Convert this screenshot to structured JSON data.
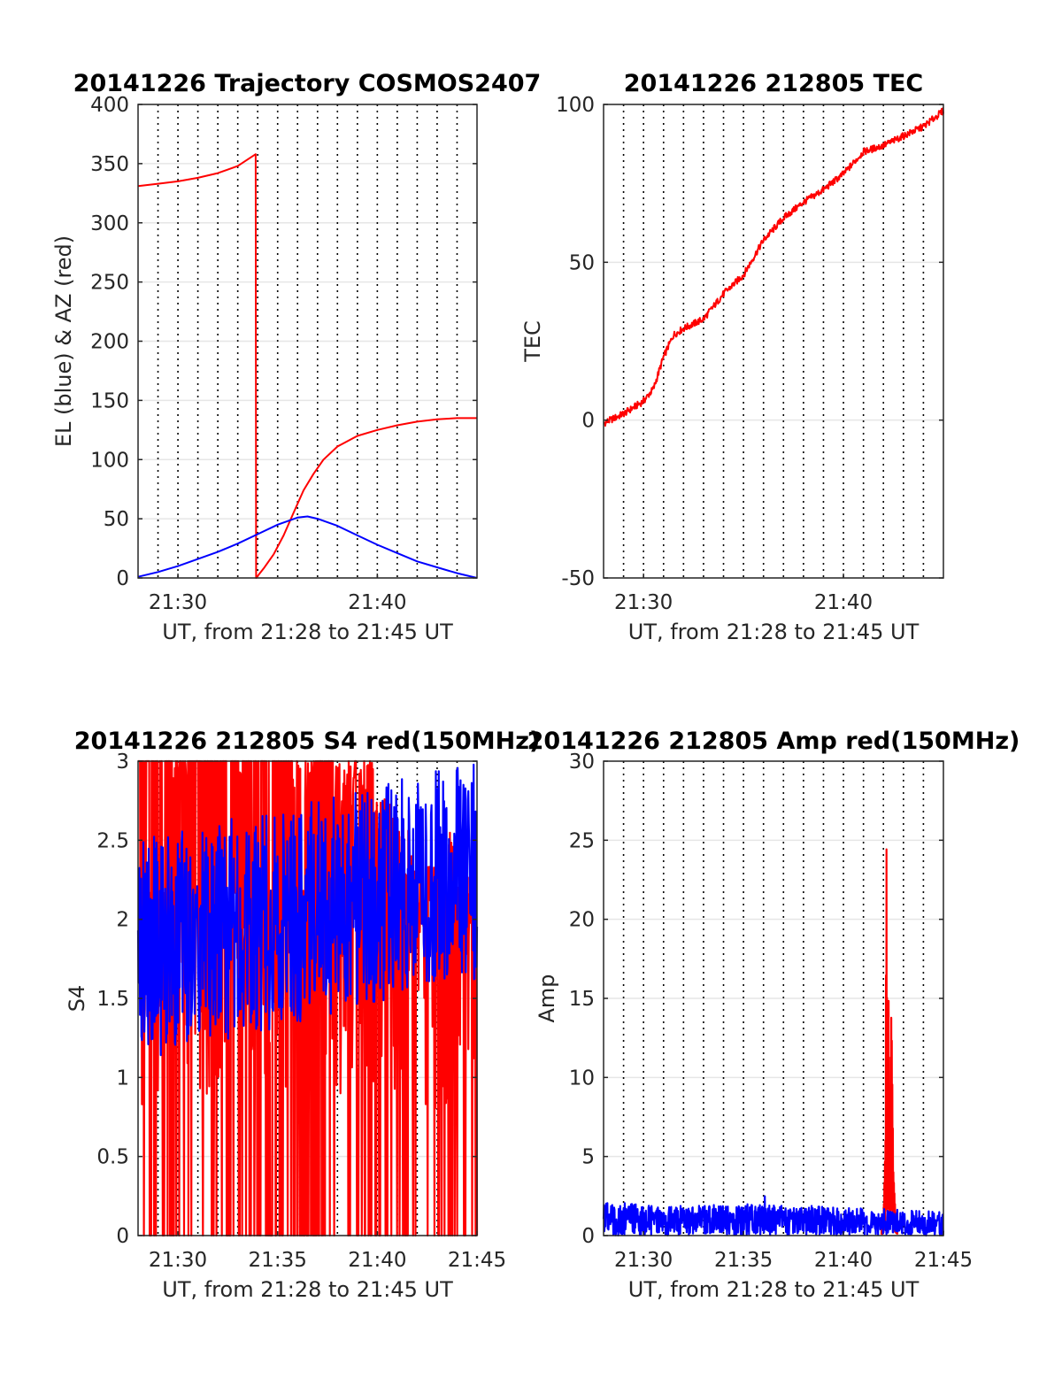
{
  "chart_data": [
    {
      "type": "line",
      "title": "20141226 Trajectory COSMOS2407",
      "xlabel": "UT, from 21:28 to 21:45 UT",
      "ylabel": "EL (blue) & AZ (red)",
      "xlim": [
        0,
        17
      ],
      "ylim": [
        0,
        400
      ],
      "xticks": [
        2,
        12
      ],
      "xticklabels": [
        "21:30",
        "21:40"
      ],
      "yticks": [
        0,
        50,
        100,
        150,
        200,
        250,
        300,
        350,
        400
      ],
      "yticklabels": [
        "0",
        "50",
        "100",
        "150",
        "200",
        "250",
        "300",
        "350",
        "400"
      ],
      "grid": true,
      "x_units": "minutes after 21:28 UT",
      "series": [
        {
          "color": "#ff0000",
          "x": [
            0,
            1,
            2,
            3,
            4,
            5,
            5.9,
            5.92,
            6.3,
            6.8,
            7.3,
            7.8,
            8.3,
            8.8,
            9.3,
            10,
            11,
            12,
            13,
            14,
            15,
            16,
            17
          ],
          "y": [
            331,
            333,
            335,
            338,
            342,
            348,
            358,
            0,
            8,
            20,
            36,
            55,
            74,
            88,
            100,
            111,
            120,
            125,
            129,
            132,
            134,
            135,
            135
          ]
        },
        {
          "color": "#0000ff",
          "x": [
            0,
            1,
            2,
            3,
            4,
            5,
            6,
            7,
            8,
            8.5,
            9,
            10,
            11,
            12,
            13,
            14,
            15,
            16,
            17
          ],
          "y": [
            1,
            5,
            10,
            16,
            22,
            29,
            37,
            45,
            51,
            52,
            50,
            44,
            36,
            28,
            21,
            14,
            9,
            4,
            0
          ]
        }
      ]
    },
    {
      "type": "line",
      "title": "20141226 212805 TEC",
      "xlabel": "UT, from 21:28 to 21:45 UT",
      "ylabel": "TEC",
      "xlim": [
        0,
        17
      ],
      "ylim": [
        -50,
        100
      ],
      "xticks": [
        2,
        12
      ],
      "xticklabels": [
        "21:30",
        "21:40"
      ],
      "yticks": [
        -50,
        0,
        50,
        100
      ],
      "yticklabels": [
        "-50",
        "0",
        "50",
        "100"
      ],
      "grid": true,
      "series": [
        {
          "color": "#ff0000",
          "x": [
            0,
            1,
            2,
            2.5,
            3,
            3.5,
            4,
            5,
            6,
            7,
            8,
            9,
            10,
            11,
            12,
            13,
            14,
            15,
            16,
            17
          ],
          "y": [
            -1,
            2,
            6,
            10,
            20,
            27,
            29,
            32,
            40,
            46,
            57,
            64,
            69,
            73,
            78,
            85,
            87,
            90,
            93,
            98
          ]
        }
      ]
    },
    {
      "type": "line",
      "title": "20141226 212805 S4 red(150MHz)",
      "xlabel": "UT, from 21:28 to 21:45 UT",
      "ylabel": "S4",
      "xlim": [
        0,
        17
      ],
      "ylim": [
        0,
        3
      ],
      "xticks": [
        2,
        7,
        12,
        17
      ],
      "xticklabels": [
        "21:30",
        "21:35",
        "21:40",
        "21:45"
      ],
      "yticks": [
        0,
        0.5,
        1,
        1.5,
        2,
        2.5,
        3
      ],
      "yticklabels": [
        "0",
        "0.5",
        "1",
        "1.5",
        "2",
        "2.5",
        "3"
      ],
      "grid": true,
      "series": [
        {
          "color": "#ff0000",
          "x": [
            0,
            0.5,
            1,
            1.5,
            2,
            2.5,
            3,
            3.5,
            4,
            4.5,
            5,
            5.5,
            6,
            6.5,
            7,
            7.5,
            8,
            8.5,
            9,
            9.5,
            10,
            10.5,
            11,
            11.5,
            12,
            12.5,
            13,
            13.5,
            14,
            14.5,
            15,
            15.5,
            16,
            16.5,
            17
          ],
          "y": [
            0.3,
            3.0,
            0.0,
            3.0,
            0.2,
            2.8,
            0.0,
            3.0,
            0.4,
            3.0,
            0.0,
            2.9,
            0.6,
            3.0,
            0.0,
            3.0,
            0.3,
            2.7,
            0.0,
            3.0,
            0.5,
            2.6,
            0.0,
            2.8,
            0.0,
            2.4,
            0.0,
            2.2,
            0.8,
            1.9,
            0.0,
            2.3,
            0.0,
            2.0,
            1.3
          ]
        },
        {
          "color": "#0000ff",
          "x": [
            0,
            0.5,
            1,
            1.5,
            2,
            2.5,
            3,
            3.5,
            4,
            4.5,
            5,
            5.5,
            6,
            6.5,
            7,
            7.5,
            8,
            8.5,
            9,
            9.5,
            10,
            10.5,
            11,
            11.5,
            12,
            12.5,
            13,
            13.5,
            14,
            14.5,
            15,
            15.5,
            16,
            16.5,
            17
          ],
          "y": [
            0.9,
            2.3,
            1.2,
            2.6,
            1.1,
            2.4,
            1.3,
            2.2,
            1.0,
            2.5,
            1.4,
            2.3,
            1.1,
            2.7,
            1.3,
            2.4,
            1.2,
            2.6,
            1.5,
            2.2,
            1.3,
            2.8,
            1.2,
            2.5,
            1.4,
            3.0,
            1.3,
            2.6,
            1.5,
            3.0,
            1.4,
            2.7,
            1.6,
            3.0,
            1.4
          ]
        }
      ]
    },
    {
      "type": "line",
      "title": "20141226 212805 Amp red(150MHz)",
      "xlabel": "UT, from 21:28 to 21:45 UT",
      "ylabel": "Amp",
      "xlim": [
        0,
        17
      ],
      "ylim": [
        0,
        30
      ],
      "xticks": [
        2,
        7,
        12,
        17
      ],
      "xticklabels": [
        "21:30",
        "21:35",
        "21:40",
        "21:45"
      ],
      "yticks": [
        0,
        5,
        10,
        15,
        20,
        25,
        30
      ],
      "yticklabels": [
        "0",
        "5",
        "10",
        "15",
        "20",
        "25",
        "30"
      ],
      "grid": true,
      "series": [
        {
          "color": "#ff0000",
          "x": [
            13.9,
            14.0,
            14.1,
            14.15,
            14.2,
            14.25,
            14.3,
            14.4,
            14.5,
            14.6,
            14.7
          ],
          "y": [
            0.5,
            1.0,
            6.0,
            25.6,
            8.0,
            17.3,
            5.0,
            14.4,
            4.0,
            1.5,
            0.5
          ]
        },
        {
          "color": "#0000ff",
          "x": [
            0,
            0.5,
            1,
            1.5,
            2,
            2.5,
            3,
            3.5,
            4,
            4.5,
            5,
            5.5,
            6,
            6.5,
            7,
            7.5,
            8,
            8.5,
            9,
            9.5,
            10,
            10.5,
            11,
            11.5,
            12,
            12.5,
            13,
            13.5,
            14,
            14.5,
            15,
            15.5,
            16,
            16.5,
            17
          ],
          "y": [
            2.3,
            0.2,
            2.1,
            0.3,
            1.9,
            0.2,
            1.8,
            0.3,
            1.9,
            0.2,
            1.8,
            0.3,
            1.9,
            0.2,
            2.0,
            0.3,
            3.4,
            0.2,
            2.1,
            0.3,
            2.5,
            0.2,
            1.9,
            0.3,
            1.8,
            0.2,
            1.7,
            0.3,
            1.6,
            0.2,
            1.6,
            0.3,
            1.5,
            0.2,
            1.4
          ]
        }
      ]
    }
  ]
}
